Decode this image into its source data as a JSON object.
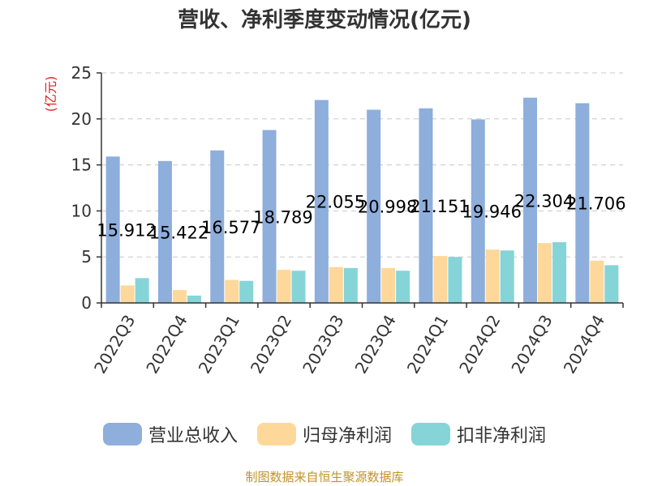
{
  "chart_data": {
    "type": "bar",
    "title": "营收、净利季度变动情况(亿元)",
    "ylabel": "(亿元)",
    "xlabel": "",
    "ylim": [
      0,
      25
    ],
    "yticks": [
      0,
      5,
      10,
      15,
      20,
      25
    ],
    "grid": true,
    "legend_position": "bottom",
    "categories": [
      "2022Q3",
      "2022Q4",
      "2023Q1",
      "2023Q2",
      "2023Q3",
      "2023Q4",
      "2024Q1",
      "2024Q2",
      "2024Q3",
      "2024Q4"
    ],
    "series": [
      {
        "name": "营业总收入",
        "color": "#8eaedb",
        "values": [
          15.912,
          15.422,
          16.577,
          18.789,
          22.055,
          20.998,
          21.151,
          19.946,
          22.304,
          21.706
        ],
        "labels": [
          "15.912",
          "15.422",
          "16.577",
          "18.789",
          "22.055",
          "20.998",
          "21.151",
          "19.946",
          "22.304",
          "21.706"
        ]
      },
      {
        "name": "归母净利润",
        "color": "#fdd89a",
        "values": [
          1.9,
          1.4,
          2.5,
          3.6,
          3.9,
          3.8,
          5.1,
          5.8,
          6.5,
          4.6
        ]
      },
      {
        "name": "扣非净利润",
        "color": "#85d4d8",
        "values": [
          2.7,
          0.8,
          2.4,
          3.5,
          3.8,
          3.5,
          5.0,
          5.7,
          6.6,
          4.1
        ]
      }
    ],
    "source": "制图数据来自恒生聚源数据库"
  }
}
